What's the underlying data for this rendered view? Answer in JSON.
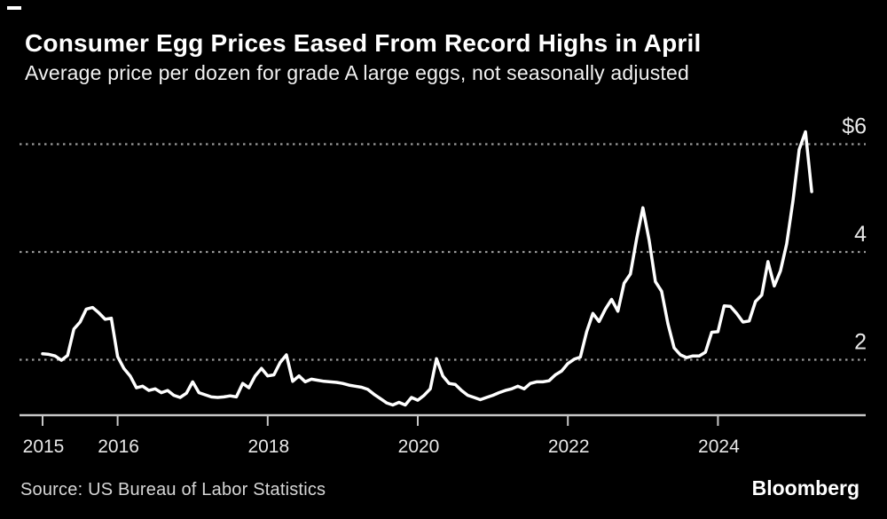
{
  "header": {
    "title": "Consumer Egg Prices Eased From Record Highs in April",
    "subtitle": "Average price per dozen for grade A large eggs, not seasonally adjusted"
  },
  "footer": {
    "source_label": "Source: US Bureau of Labor Statistics",
    "brand": "Bloomberg"
  },
  "chart_data": {
    "type": "line",
    "title": "Consumer Egg Prices Eased From Record Highs in April",
    "subtitle": "Average price per dozen for grade A large eggs, not seasonally adjusted",
    "unit": "USD per dozen",
    "frequency": "monthly",
    "x_start": "2015-01",
    "x_end": "2025-04",
    "ylim": [
      1.0,
      6.6
    ],
    "grid": "horizontal-dotted",
    "legend": "none",
    "background": "#000000",
    "line_color": "#ffffff",
    "grid_color": "#9a9a9a",
    "axis_color": "#c7c7c7",
    "x_ticks": [
      {
        "year": 2015,
        "label": "2015"
      },
      {
        "year": 2016,
        "label": "2016"
      },
      {
        "year": 2018,
        "label": "2018"
      },
      {
        "year": 2020,
        "label": "2020"
      },
      {
        "year": 2022,
        "label": "2022"
      },
      {
        "year": 2024,
        "label": "2024"
      }
    ],
    "y_ticks": [
      {
        "value": 6,
        "label": "$6"
      },
      {
        "value": 4,
        "label": "4"
      },
      {
        "value": 2,
        "label": "2"
      }
    ],
    "series": [
      {
        "name": "Average price per dozen, grade A large eggs",
        "color": "#ffffff",
        "values": [
          2.11,
          2.1,
          2.07,
          1.99,
          2.08,
          2.57,
          2.7,
          2.94,
          2.97,
          2.87,
          2.75,
          2.77,
          2.06,
          1.84,
          1.7,
          1.48,
          1.51,
          1.43,
          1.46,
          1.39,
          1.43,
          1.34,
          1.3,
          1.38,
          1.59,
          1.39,
          1.35,
          1.31,
          1.3,
          1.31,
          1.33,
          1.31,
          1.56,
          1.48,
          1.7,
          1.84,
          1.7,
          1.72,
          1.95,
          2.09,
          1.6,
          1.7,
          1.59,
          1.64,
          1.62,
          1.6,
          1.59,
          1.58,
          1.56,
          1.53,
          1.51,
          1.49,
          1.45,
          1.36,
          1.28,
          1.2,
          1.16,
          1.21,
          1.16,
          1.3,
          1.25,
          1.34,
          1.46,
          2.02,
          1.7,
          1.56,
          1.54,
          1.43,
          1.34,
          1.3,
          1.26,
          1.3,
          1.34,
          1.39,
          1.43,
          1.46,
          1.51,
          1.46,
          1.56,
          1.59,
          1.59,
          1.61,
          1.72,
          1.79,
          1.93,
          2.01,
          2.05,
          2.52,
          2.86,
          2.71,
          2.94,
          3.12,
          2.9,
          3.42,
          3.59,
          4.25,
          4.82,
          4.21,
          3.45,
          3.27,
          2.67,
          2.22,
          2.09,
          2.04,
          2.07,
          2.07,
          2.14,
          2.51,
          2.52,
          3.0,
          2.99,
          2.86,
          2.7,
          2.72,
          3.08,
          3.2,
          3.82,
          3.37,
          3.65,
          4.15,
          4.95,
          5.9,
          6.23,
          5.12
        ]
      }
    ]
  }
}
